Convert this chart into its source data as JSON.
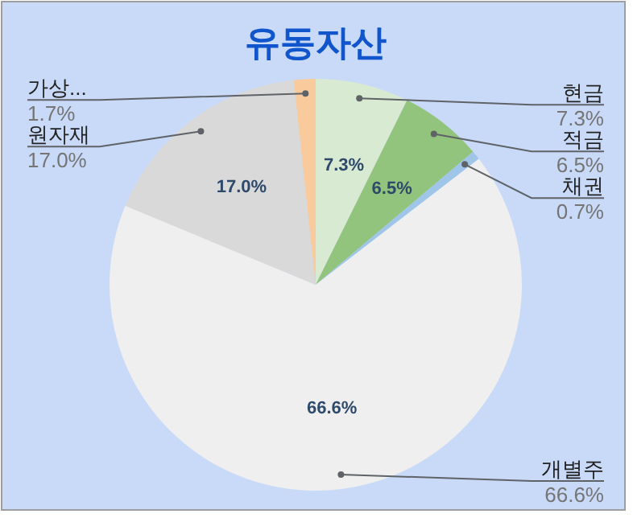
{
  "chart_data": {
    "type": "pie",
    "title": "유동자산",
    "categories": [
      "현금",
      "적금",
      "채권",
      "개별주",
      "원자재",
      "가상..."
    ],
    "values": [
      7.3,
      6.5,
      0.7,
      66.6,
      17.0,
      1.7
    ],
    "colors": [
      "#d9ead3",
      "#93c47d",
      "#9fc5e8",
      "#efefef",
      "#d9d9d9",
      "#f9cb9c"
    ],
    "value_labels": [
      "7.3%",
      "6.5%",
      "0.7%",
      "66.6%",
      "17.0%",
      "1.7%"
    ]
  }
}
